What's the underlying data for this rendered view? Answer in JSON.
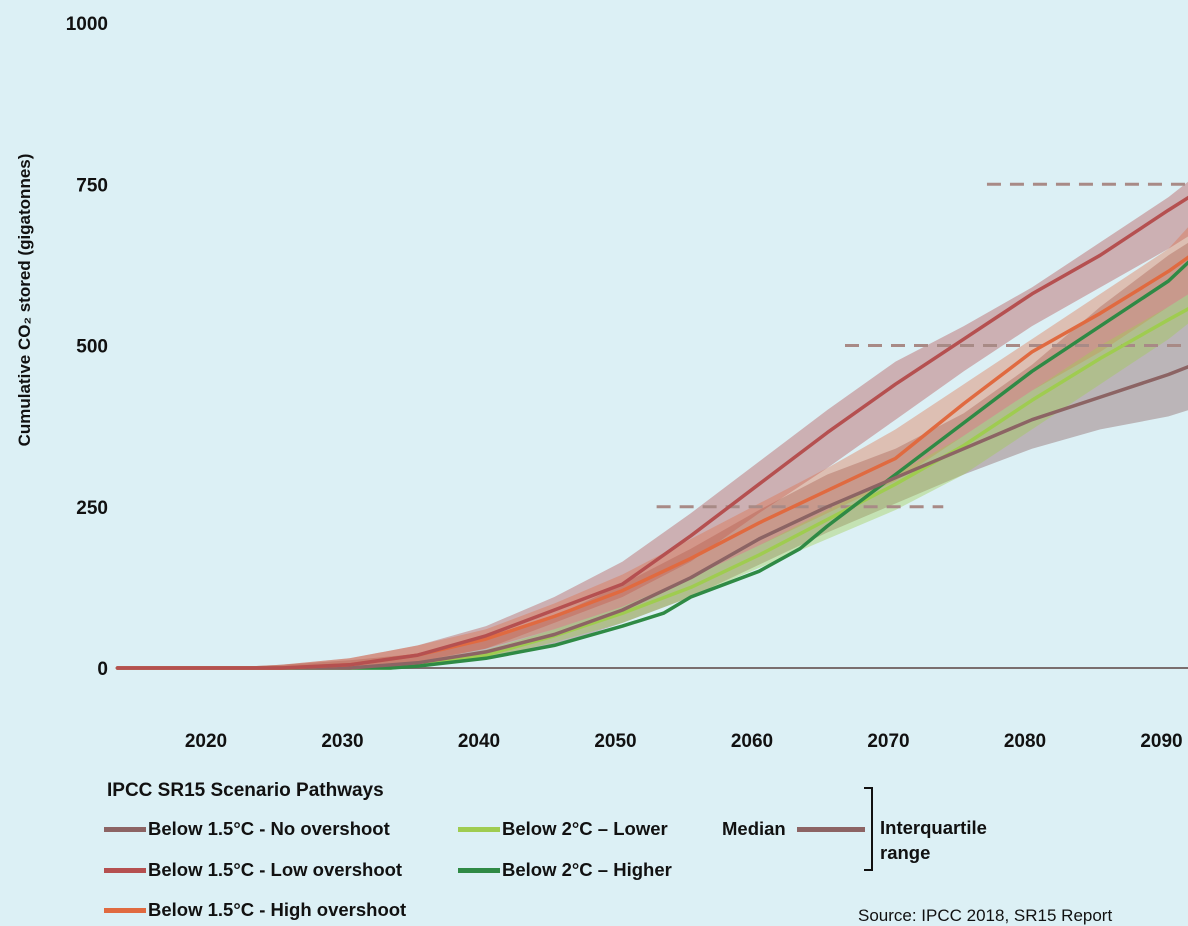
{
  "chart_data": {
    "type": "line",
    "ylabel": "Cumulative CO₂ stored (gigatonnes)",
    "xlim": [
      2013,
      2093
    ],
    "ylim": [
      0,
      1000
    ],
    "x_ticks": [
      2020,
      2030,
      2040,
      2050,
      2060,
      2070,
      2080,
      2090
    ],
    "y_ticks": [
      0,
      250,
      500,
      750,
      1000
    ],
    "grid": false,
    "reference_lines": [
      {
        "y": 250,
        "x_range": [
          2052.5,
          2073.5
        ]
      },
      {
        "y": 500,
        "x_range": [
          2066.3,
          2093
        ]
      },
      {
        "y": 750,
        "x_range": [
          2076.7,
          2093
        ]
      }
    ],
    "series": [
      {
        "name": "Below 1.5°C - No overshoot",
        "color": "#8c6464",
        "x": [
          2013,
          2020,
          2025,
          2030,
          2035,
          2040,
          2045,
          2050,
          2055,
          2060,
          2065,
          2070,
          2075,
          2080,
          2085,
          2090,
          2093
        ],
        "median": [
          0,
          0,
          0,
          0,
          8,
          25,
          52,
          90,
          140,
          200,
          250,
          295,
          340,
          385,
          420,
          455,
          480
        ],
        "iqr_low": [
          0,
          0,
          0,
          -3,
          3,
          13,
          35,
          70,
          110,
          160,
          210,
          255,
          300,
          340,
          370,
          390,
          410
        ],
        "iqr_high": [
          0,
          0,
          5,
          12,
          22,
          45,
          80,
          130,
          185,
          245,
          300,
          340,
          395,
          470,
          560,
          640,
          680
        ]
      },
      {
        "name": "Below 1.5°C - Low overshoot",
        "color": "#b55050",
        "x": [
          2013,
          2020,
          2025,
          2030,
          2035,
          2040,
          2045,
          2050,
          2055,
          2060,
          2065,
          2070,
          2075,
          2080,
          2085,
          2090,
          2093
        ],
        "median": [
          0,
          0,
          0,
          5,
          20,
          50,
          90,
          130,
          205,
          285,
          365,
          440,
          510,
          580,
          640,
          710,
          750
        ],
        "iqr_low": [
          0,
          0,
          0,
          0,
          10,
          30,
          70,
          110,
          165,
          240,
          310,
          385,
          460,
          530,
          590,
          650,
          690
        ],
        "iqr_high": [
          0,
          0,
          5,
          15,
          35,
          65,
          110,
          165,
          240,
          320,
          400,
          475,
          530,
          590,
          660,
          730,
          780
        ]
      },
      {
        "name": "Below 1.5°C - High overshoot",
        "color": "#e06a40",
        "x": [
          2013,
          2020,
          2025,
          2030,
          2035,
          2040,
          2045,
          2050,
          2055,
          2060,
          2065,
          2070,
          2075,
          2080,
          2085,
          2090,
          2093
        ],
        "median": [
          0,
          0,
          0,
          5,
          20,
          45,
          80,
          120,
          170,
          225,
          275,
          325,
          410,
          490,
          550,
          615,
          660
        ],
        "iqr_low": [
          0,
          0,
          0,
          -2,
          8,
          30,
          60,
          95,
          140,
          190,
          240,
          290,
          360,
          430,
          490,
          560,
          600
        ],
        "iqr_high": [
          0,
          0,
          5,
          15,
          35,
          60,
          100,
          145,
          200,
          255,
          310,
          370,
          440,
          510,
          580,
          650,
          720
        ]
      },
      {
        "name": "Below 2°C – Lower",
        "color": "#9fcc50",
        "x": [
          2013,
          2020,
          2025,
          2030,
          2033,
          2035,
          2040,
          2045,
          2050,
          2055,
          2060,
          2065,
          2070,
          2075,
          2080,
          2085,
          2090,
          2093
        ],
        "median": [
          0,
          0,
          0,
          0,
          0,
          5,
          20,
          50,
          85,
          125,
          175,
          230,
          285,
          345,
          415,
          480,
          540,
          575
        ],
        "iqr_low": [
          0,
          0,
          0,
          0,
          0,
          2,
          15,
          40,
          70,
          110,
          155,
          200,
          245,
          300,
          370,
          440,
          510,
          560
        ],
        "iqr_high": [
          0,
          0,
          0,
          0,
          2,
          10,
          28,
          60,
          95,
          140,
          190,
          245,
          300,
          360,
          430,
          500,
          560,
          600
        ]
      },
      {
        "name": "Below 2°C – Higher",
        "color": "#2f8a45",
        "x": [
          2013,
          2020,
          2025,
          2030,
          2033,
          2035,
          2040,
          2045,
          2050,
          2053,
          2055,
          2060,
          2063,
          2065,
          2070,
          2075,
          2080,
          2085,
          2090,
          2093
        ],
        "median": [
          0,
          0,
          0,
          0,
          0,
          3,
          15,
          35,
          65,
          85,
          110,
          150,
          185,
          220,
          300,
          380,
          460,
          530,
          600,
          660
        ]
      }
    ]
  },
  "legend": {
    "title": "IPCC SR15 Scenario Pathways",
    "median_label": "Median",
    "iqr_label": "Interquartile range"
  },
  "source": "Source: IPCC 2018, SR15 Report"
}
